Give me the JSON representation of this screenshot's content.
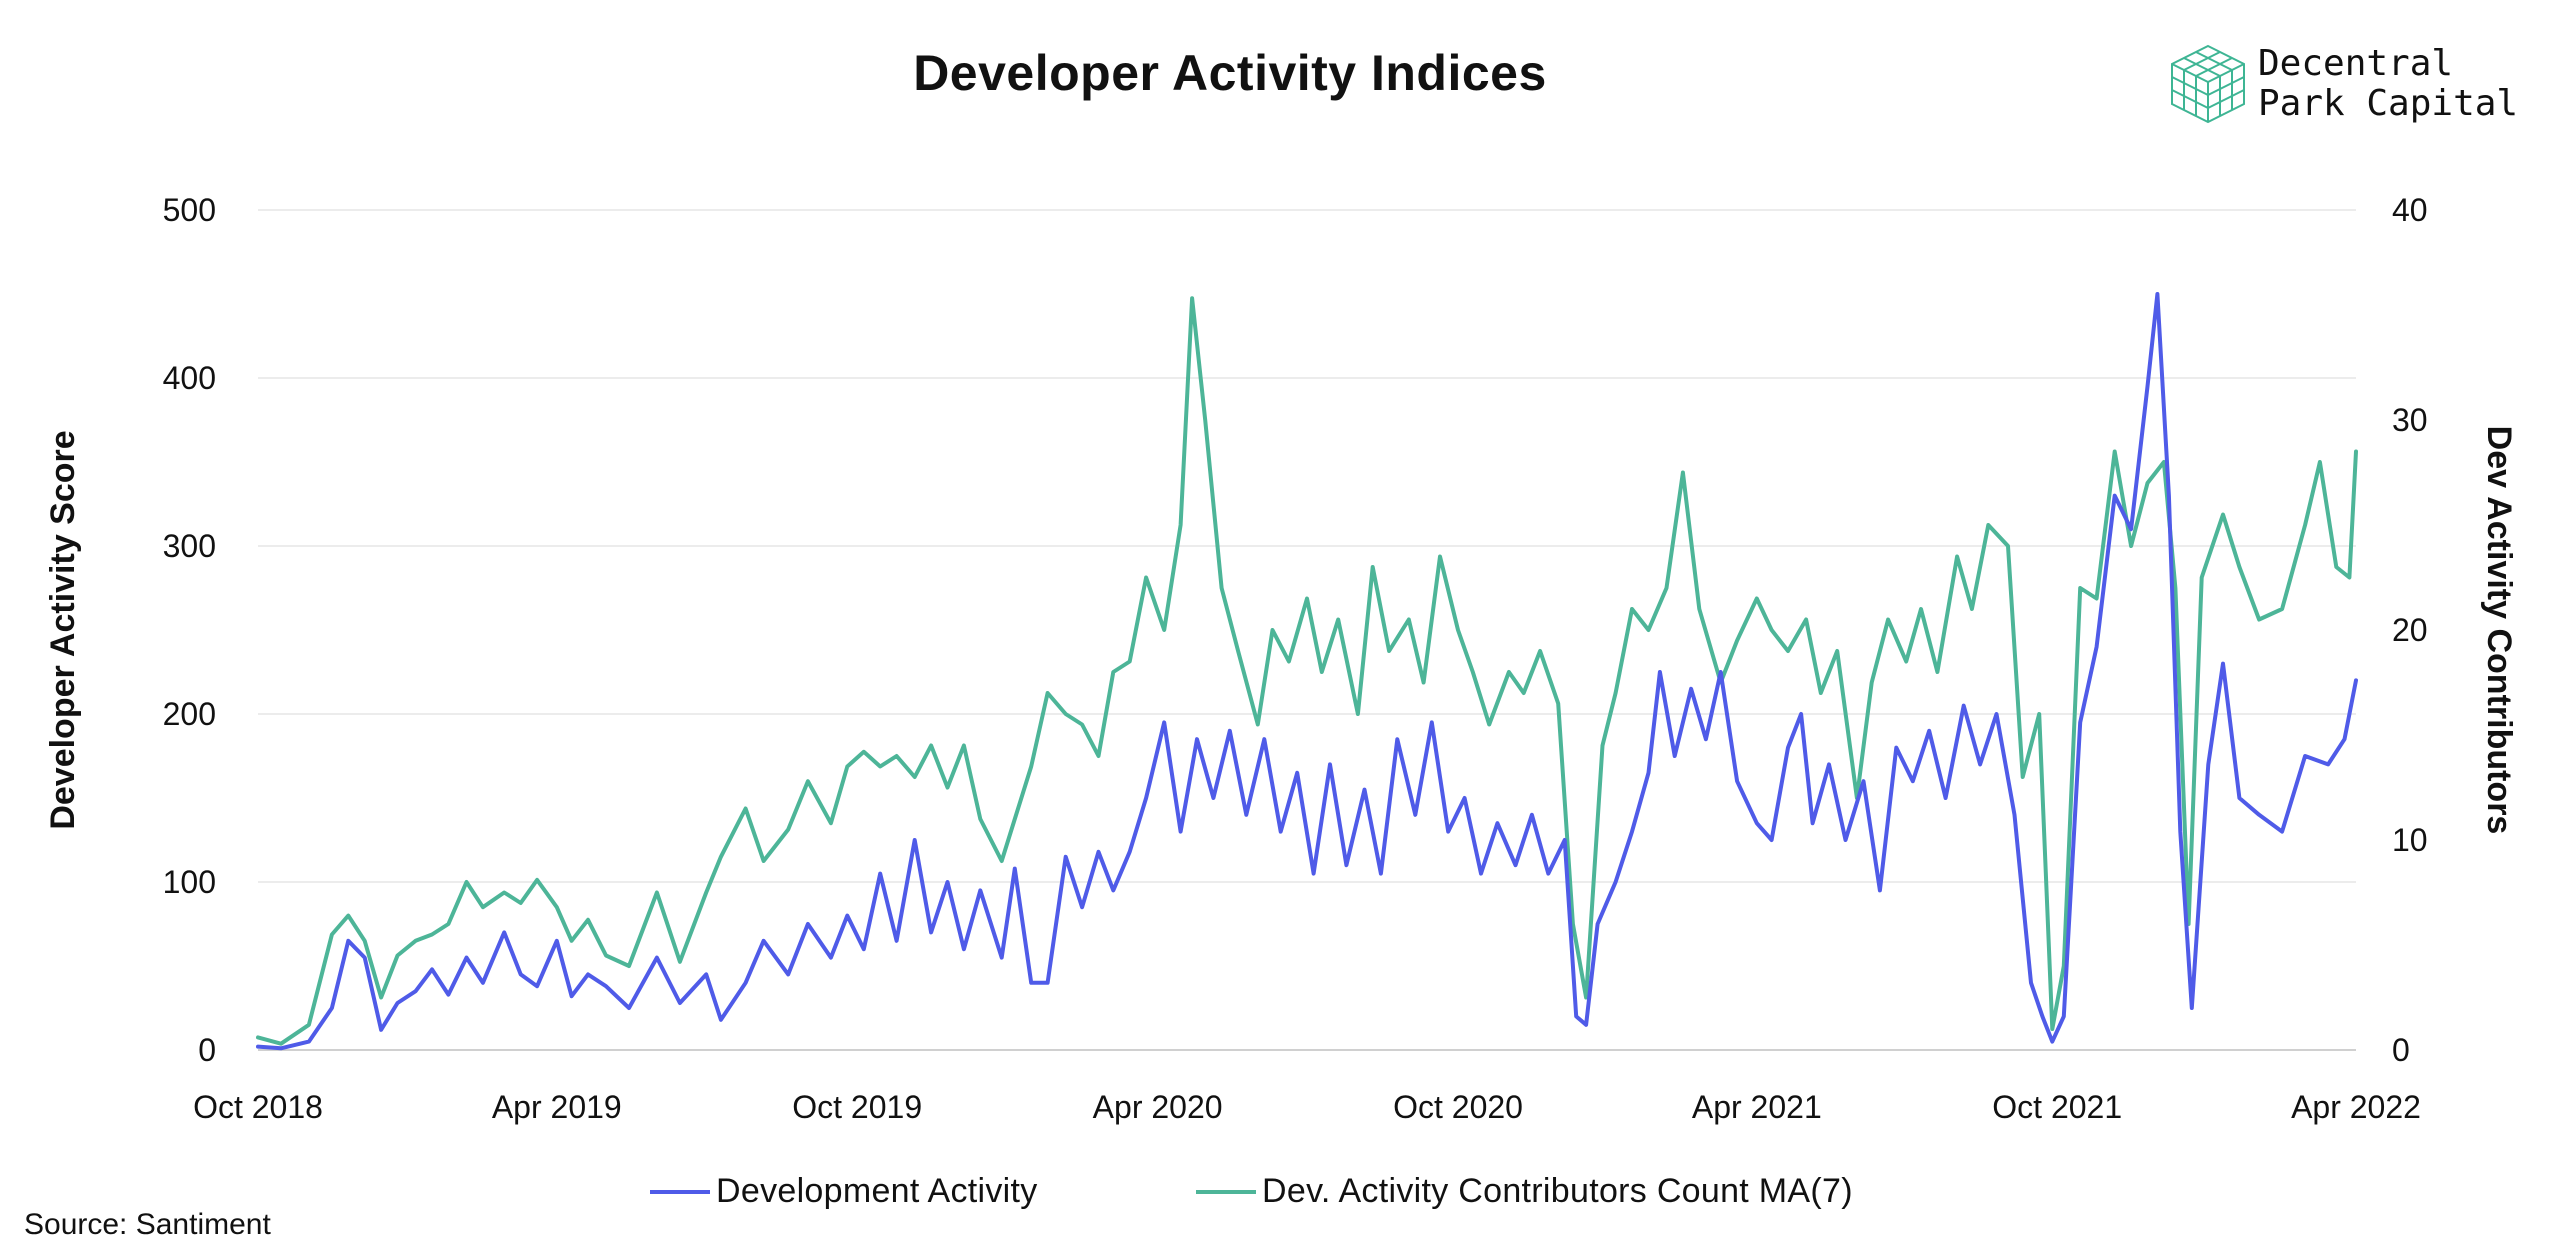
{
  "header": {
    "title": "Developer Activity Indices"
  },
  "logo": {
    "line1": "Decentral",
    "line2": "Park Capital",
    "icon": "cube-grid-icon",
    "color": "#3eb594"
  },
  "footer": {
    "source": "Source: Santiment"
  },
  "colors": {
    "dev_activity": "#4f5be8",
    "contributors": "#4db598",
    "grid": "#e6e6e6",
    "axis": "#d0d0d0"
  },
  "chart_data": {
    "type": "line",
    "x_axis": {
      "ticks": [
        "Oct 2018",
        "Apr 2019",
        "Oct 2019",
        "Apr 2020",
        "Oct 2020",
        "Apr 2021",
        "Oct 2021",
        "Apr 2022"
      ],
      "range": [
        "2018-10",
        "2022-04"
      ]
    },
    "y_left": {
      "label": "Developer Activity Score",
      "ticks": [
        0,
        100,
        200,
        300,
        400,
        500
      ],
      "range": [
        0,
        500
      ]
    },
    "y_right": {
      "label": "Dev Activity Contributors",
      "ticks": [
        0,
        10,
        20,
        30,
        40
      ],
      "range": [
        0,
        40
      ]
    },
    "grid": true,
    "legend_position": "bottom",
    "series": [
      {
        "name": "Development Activity",
        "axis": "left",
        "color": "#4f5be8",
        "points": [
          [
            "2018-10-01",
            2
          ],
          [
            "2018-10-15",
            1
          ],
          [
            "2018-11-01",
            5
          ],
          [
            "2018-11-15",
            25
          ],
          [
            "2018-11-25",
            65
          ],
          [
            "2018-12-05",
            55
          ],
          [
            "2018-12-15",
            12
          ],
          [
            "2018-12-25",
            28
          ],
          [
            "2019-01-05",
            35
          ],
          [
            "2019-01-15",
            48
          ],
          [
            "2019-01-25",
            33
          ],
          [
            "2019-02-05",
            55
          ],
          [
            "2019-02-15",
            40
          ],
          [
            "2019-02-28",
            70
          ],
          [
            "2019-03-10",
            45
          ],
          [
            "2019-03-20",
            38
          ],
          [
            "2019-04-01",
            65
          ],
          [
            "2019-04-10",
            32
          ],
          [
            "2019-04-20",
            45
          ],
          [
            "2019-05-01",
            38
          ],
          [
            "2019-05-15",
            25
          ],
          [
            "2019-06-01",
            55
          ],
          [
            "2019-06-15",
            28
          ],
          [
            "2019-07-01",
            45
          ],
          [
            "2019-07-10",
            18
          ],
          [
            "2019-07-25",
            40
          ],
          [
            "2019-08-05",
            65
          ],
          [
            "2019-08-20",
            45
          ],
          [
            "2019-09-01",
            75
          ],
          [
            "2019-09-15",
            55
          ],
          [
            "2019-09-25",
            80
          ],
          [
            "2019-10-05",
            60
          ],
          [
            "2019-10-15",
            105
          ],
          [
            "2019-10-25",
            65
          ],
          [
            "2019-11-05",
            125
          ],
          [
            "2019-11-15",
            70
          ],
          [
            "2019-11-25",
            100
          ],
          [
            "2019-12-05",
            60
          ],
          [
            "2019-12-15",
            95
          ],
          [
            "2019-12-28",
            55
          ],
          [
            "2020-01-05",
            108
          ],
          [
            "2020-01-15",
            40
          ],
          [
            "2020-01-25",
            40
          ],
          [
            "2020-02-05",
            115
          ],
          [
            "2020-02-15",
            85
          ],
          [
            "2020-02-25",
            118
          ],
          [
            "2020-03-05",
            95
          ],
          [
            "2020-03-15",
            118
          ],
          [
            "2020-03-25",
            150
          ],
          [
            "2020-04-05",
            195
          ],
          [
            "2020-04-15",
            130
          ],
          [
            "2020-04-25",
            185
          ],
          [
            "2020-05-05",
            150
          ],
          [
            "2020-05-15",
            190
          ],
          [
            "2020-05-25",
            140
          ],
          [
            "2020-06-05",
            185
          ],
          [
            "2020-06-15",
            130
          ],
          [
            "2020-06-25",
            165
          ],
          [
            "2020-07-05",
            105
          ],
          [
            "2020-07-15",
            170
          ],
          [
            "2020-07-25",
            110
          ],
          [
            "2020-08-05",
            155
          ],
          [
            "2020-08-15",
            105
          ],
          [
            "2020-08-25",
            185
          ],
          [
            "2020-09-05",
            140
          ],
          [
            "2020-09-15",
            195
          ],
          [
            "2020-09-25",
            130
          ],
          [
            "2020-10-05",
            150
          ],
          [
            "2020-10-15",
            105
          ],
          [
            "2020-10-25",
            135
          ],
          [
            "2020-11-05",
            110
          ],
          [
            "2020-11-15",
            140
          ],
          [
            "2020-11-25",
            105
          ],
          [
            "2020-12-05",
            125
          ],
          [
            "2020-12-12",
            20
          ],
          [
            "2020-12-18",
            15
          ],
          [
            "2020-12-25",
            75
          ],
          [
            "2021-01-05",
            100
          ],
          [
            "2021-01-15",
            130
          ],
          [
            "2021-01-25",
            165
          ],
          [
            "2021-02-01",
            225
          ],
          [
            "2021-02-10",
            175
          ],
          [
            "2021-02-20",
            215
          ],
          [
            "2021-03-01",
            185
          ],
          [
            "2021-03-10",
            225
          ],
          [
            "2021-03-20",
            160
          ],
          [
            "2021-04-01",
            135
          ],
          [
            "2021-04-10",
            125
          ],
          [
            "2021-04-20",
            180
          ],
          [
            "2021-04-28",
            200
          ],
          [
            "2021-05-05",
            135
          ],
          [
            "2021-05-15",
            170
          ],
          [
            "2021-05-25",
            125
          ],
          [
            "2021-06-05",
            160
          ],
          [
            "2021-06-15",
            95
          ],
          [
            "2021-06-25",
            180
          ],
          [
            "2021-07-05",
            160
          ],
          [
            "2021-07-15",
            190
          ],
          [
            "2021-07-25",
            150
          ],
          [
            "2021-08-05",
            205
          ],
          [
            "2021-08-15",
            170
          ],
          [
            "2021-08-25",
            200
          ],
          [
            "2021-09-05",
            140
          ],
          [
            "2021-09-15",
            40
          ],
          [
            "2021-09-22",
            20
          ],
          [
            "2021-09-28",
            5
          ],
          [
            "2021-10-05",
            20
          ],
          [
            "2021-10-15",
            195
          ],
          [
            "2021-10-25",
            240
          ],
          [
            "2021-11-05",
            330
          ],
          [
            "2021-11-15",
            310
          ],
          [
            "2021-11-25",
            395
          ],
          [
            "2021-12-01",
            450
          ],
          [
            "2021-12-08",
            330
          ],
          [
            "2021-12-15",
            130
          ],
          [
            "2021-12-22",
            25
          ],
          [
            "2022-01-01",
            170
          ],
          [
            "2022-01-10",
            230
          ],
          [
            "2022-01-20",
            150
          ],
          [
            "2022-02-01",
            140
          ],
          [
            "2022-02-15",
            130
          ],
          [
            "2022-03-01",
            175
          ],
          [
            "2022-03-15",
            170
          ],
          [
            "2022-03-25",
            185
          ],
          [
            "2022-04-01",
            220
          ]
        ]
      },
      {
        "name": "Dev. Activity Contributors Count MA(7)",
        "axis": "right",
        "color": "#4db598",
        "points": [
          [
            "2018-10-01",
            0.6
          ],
          [
            "2018-10-15",
            0.3
          ],
          [
            "2018-11-01",
            1.2
          ],
          [
            "2018-11-15",
            5.5
          ],
          [
            "2018-11-25",
            6.4
          ],
          [
            "2018-12-05",
            5.2
          ],
          [
            "2018-12-15",
            2.5
          ],
          [
            "2018-12-25",
            4.5
          ],
          [
            "2019-01-05",
            5.2
          ],
          [
            "2019-01-15",
            5.5
          ],
          [
            "2019-01-25",
            6.0
          ],
          [
            "2019-02-05",
            8.0
          ],
          [
            "2019-02-15",
            6.8
          ],
          [
            "2019-02-28",
            7.5
          ],
          [
            "2019-03-10",
            7.0
          ],
          [
            "2019-03-20",
            8.1
          ],
          [
            "2019-04-01",
            6.8
          ],
          [
            "2019-04-10",
            5.2
          ],
          [
            "2019-04-20",
            6.2
          ],
          [
            "2019-05-01",
            4.5
          ],
          [
            "2019-05-15",
            4.0
          ],
          [
            "2019-06-01",
            7.5
          ],
          [
            "2019-06-15",
            4.2
          ],
          [
            "2019-07-01",
            7.5
          ],
          [
            "2019-07-10",
            9.2
          ],
          [
            "2019-07-25",
            11.5
          ],
          [
            "2019-08-05",
            9.0
          ],
          [
            "2019-08-20",
            10.5
          ],
          [
            "2019-09-01",
            12.8
          ],
          [
            "2019-09-15",
            10.8
          ],
          [
            "2019-09-25",
            13.5
          ],
          [
            "2019-10-05",
            14.2
          ],
          [
            "2019-10-15",
            13.5
          ],
          [
            "2019-10-25",
            14.0
          ],
          [
            "2019-11-05",
            13.0
          ],
          [
            "2019-11-15",
            14.5
          ],
          [
            "2019-11-25",
            12.5
          ],
          [
            "2019-12-05",
            14.5
          ],
          [
            "2019-12-15",
            11.0
          ],
          [
            "2019-12-28",
            9.0
          ],
          [
            "2020-01-05",
            11.0
          ],
          [
            "2020-01-15",
            13.5
          ],
          [
            "2020-01-25",
            17.0
          ],
          [
            "2020-02-05",
            16.0
          ],
          [
            "2020-02-15",
            15.5
          ],
          [
            "2020-02-25",
            14.0
          ],
          [
            "2020-03-05",
            18.0
          ],
          [
            "2020-03-15",
            18.5
          ],
          [
            "2020-03-25",
            22.5
          ],
          [
            "2020-04-05",
            20.0
          ],
          [
            "2020-04-15",
            25.0
          ],
          [
            "2020-04-22",
            35.8
          ],
          [
            "2020-04-30",
            30.0
          ],
          [
            "2020-05-10",
            22.0
          ],
          [
            "2020-05-20",
            19.0
          ],
          [
            "2020-06-01",
            15.5
          ],
          [
            "2020-06-10",
            20.0
          ],
          [
            "2020-06-20",
            18.5
          ],
          [
            "2020-07-01",
            21.5
          ],
          [
            "2020-07-10",
            18.0
          ],
          [
            "2020-07-20",
            20.5
          ],
          [
            "2020-08-01",
            16.0
          ],
          [
            "2020-08-10",
            23.0
          ],
          [
            "2020-08-20",
            19.0
          ],
          [
            "2020-09-01",
            20.5
          ],
          [
            "2020-09-10",
            17.5
          ],
          [
            "2020-09-20",
            23.5
          ],
          [
            "2020-10-01",
            20.0
          ],
          [
            "2020-10-10",
            18.0
          ],
          [
            "2020-10-20",
            15.5
          ],
          [
            "2020-11-01",
            18.0
          ],
          [
            "2020-11-10",
            17.0
          ],
          [
            "2020-11-20",
            19.0
          ],
          [
            "2020-12-01",
            16.5
          ],
          [
            "2020-12-10",
            6.0
          ],
          [
            "2020-12-18",
            2.5
          ],
          [
            "2020-12-28",
            14.5
          ],
          [
            "2021-01-05",
            17.0
          ],
          [
            "2021-01-15",
            21.0
          ],
          [
            "2021-01-25",
            20.0
          ],
          [
            "2021-02-05",
            22.0
          ],
          [
            "2021-02-15",
            27.5
          ],
          [
            "2021-02-25",
            21.0
          ],
          [
            "2021-03-10",
            17.5
          ],
          [
            "2021-03-20",
            19.5
          ],
          [
            "2021-04-01",
            21.5
          ],
          [
            "2021-04-10",
            20.0
          ],
          [
            "2021-04-20",
            19.0
          ],
          [
            "2021-05-01",
            20.5
          ],
          [
            "2021-05-10",
            17.0
          ],
          [
            "2021-05-20",
            19.0
          ],
          [
            "2021-06-01",
            12.0
          ],
          [
            "2021-06-10",
            17.5
          ],
          [
            "2021-06-20",
            20.5
          ],
          [
            "2021-07-01",
            18.5
          ],
          [
            "2021-07-10",
            21.0
          ],
          [
            "2021-07-20",
            18.0
          ],
          [
            "2021-08-01",
            23.5
          ],
          [
            "2021-08-10",
            21.0
          ],
          [
            "2021-08-20",
            25.0
          ],
          [
            "2021-09-01",
            24.0
          ],
          [
            "2021-09-10",
            13.0
          ],
          [
            "2021-09-20",
            16.0
          ],
          [
            "2021-09-28",
            1.0
          ],
          [
            "2021-10-05",
            4.0
          ],
          [
            "2021-10-15",
            22.0
          ],
          [
            "2021-10-25",
            21.5
          ],
          [
            "2021-11-05",
            28.5
          ],
          [
            "2021-11-15",
            24.0
          ],
          [
            "2021-11-25",
            27.0
          ],
          [
            "2021-12-05",
            28.0
          ],
          [
            "2021-12-12",
            22.0
          ],
          [
            "2021-12-20",
            6.0
          ],
          [
            "2021-12-28",
            22.5
          ],
          [
            "2022-01-10",
            25.5
          ],
          [
            "2022-01-20",
            23.0
          ],
          [
            "2022-02-01",
            20.5
          ],
          [
            "2022-02-15",
            21.0
          ],
          [
            "2022-03-01",
            25.0
          ],
          [
            "2022-03-10",
            28.0
          ],
          [
            "2022-03-20",
            23.0
          ],
          [
            "2022-03-28",
            22.5
          ],
          [
            "2022-04-01",
            28.5
          ]
        ]
      }
    ]
  }
}
